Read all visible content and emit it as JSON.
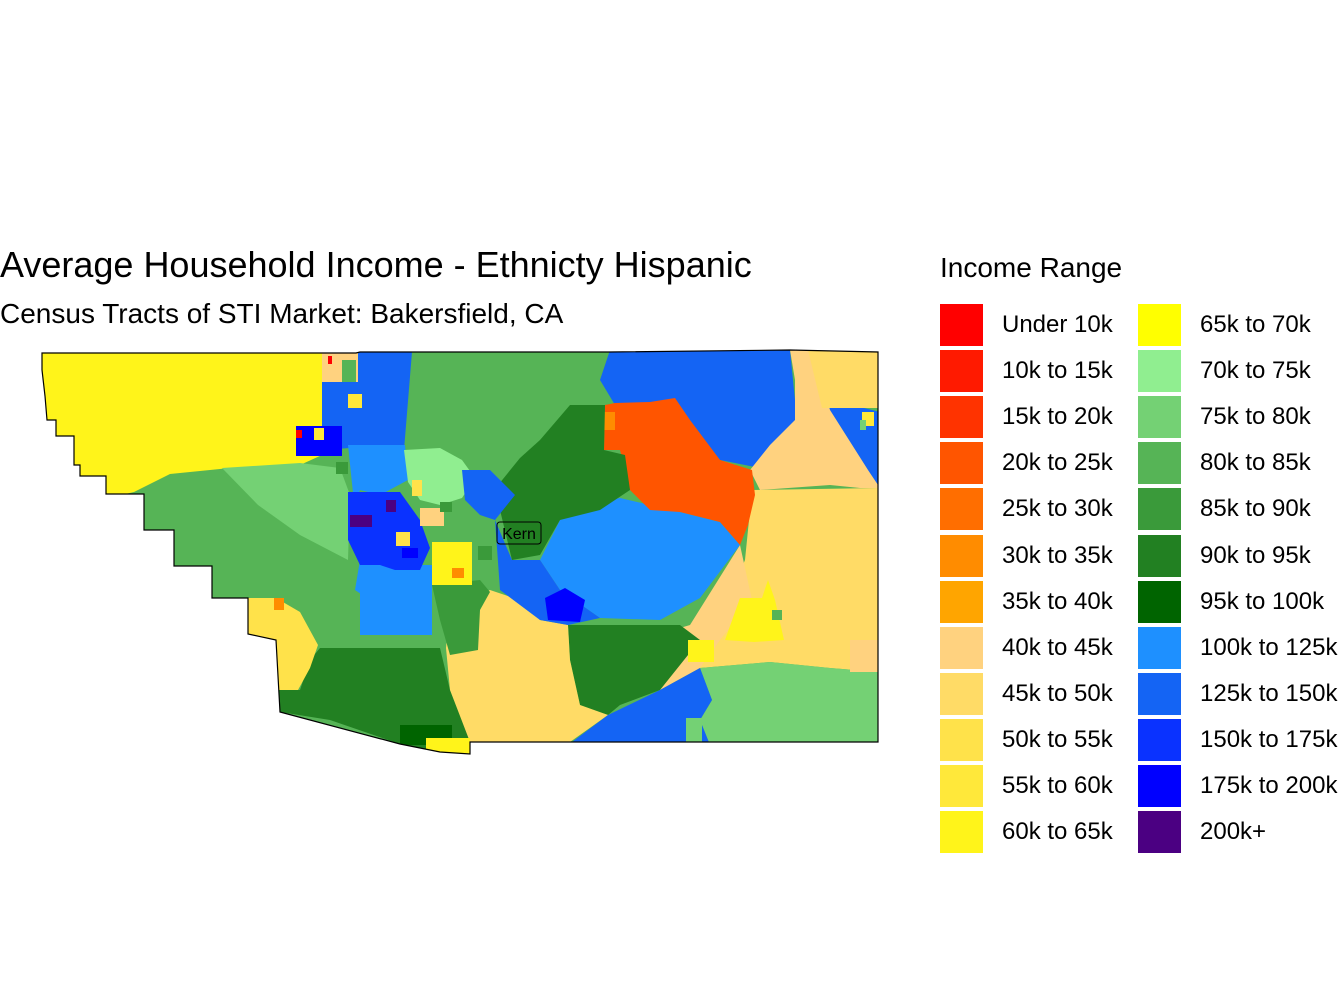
{
  "title": "Average Household Income - Ethnicty Hispanic",
  "subtitle": "Census Tracts of STI Market: Bakersfield, CA",
  "map_label": "Kern",
  "legend": {
    "title": "Income Range",
    "items": [
      {
        "label": "Under 10k",
        "color": "#FF0000"
      },
      {
        "label": "10k to 15k",
        "color": "#FF1A00"
      },
      {
        "label": "15k to 20k",
        "color": "#FF3300"
      },
      {
        "label": "20k to 25k",
        "color": "#FF5500"
      },
      {
        "label": "25k to 30k",
        "color": "#FF6E00"
      },
      {
        "label": "30k to 35k",
        "color": "#FF8C00"
      },
      {
        "label": "35k to 40k",
        "color": "#FFA500"
      },
      {
        "label": "40k to 45k",
        "color": "#FFD27F"
      },
      {
        "label": "45k to 50k",
        "color": "#FFDB66"
      },
      {
        "label": "50k to 55k",
        "color": "#FFE24A"
      },
      {
        "label": "55k to 60k",
        "color": "#FFE83A"
      },
      {
        "label": "60k to 65k",
        "color": "#FFF41A"
      },
      {
        "label": "65k to 70k",
        "color": "#FFFF00"
      },
      {
        "label": "70k to 75k",
        "color": "#90EE90"
      },
      {
        "label": "75k to 80k",
        "color": "#74D174"
      },
      {
        "label": "80k to 85k",
        "color": "#56B456"
      },
      {
        "label": "85k to 90k",
        "color": "#3A9A3A"
      },
      {
        "label": "90k to 95k",
        "color": "#228022"
      },
      {
        "label": "95k to 100k",
        "color": "#006400"
      },
      {
        "label": "100k to 125k",
        "color": "#1E90FF"
      },
      {
        "label": "125k to 150k",
        "color": "#1464F4"
      },
      {
        "label": "150k to 175k",
        "color": "#0A32FF"
      },
      {
        "label": "175k to 200k",
        "color": "#0000FF"
      },
      {
        "label": "200k+",
        "color": "#4B0082"
      }
    ]
  }
}
